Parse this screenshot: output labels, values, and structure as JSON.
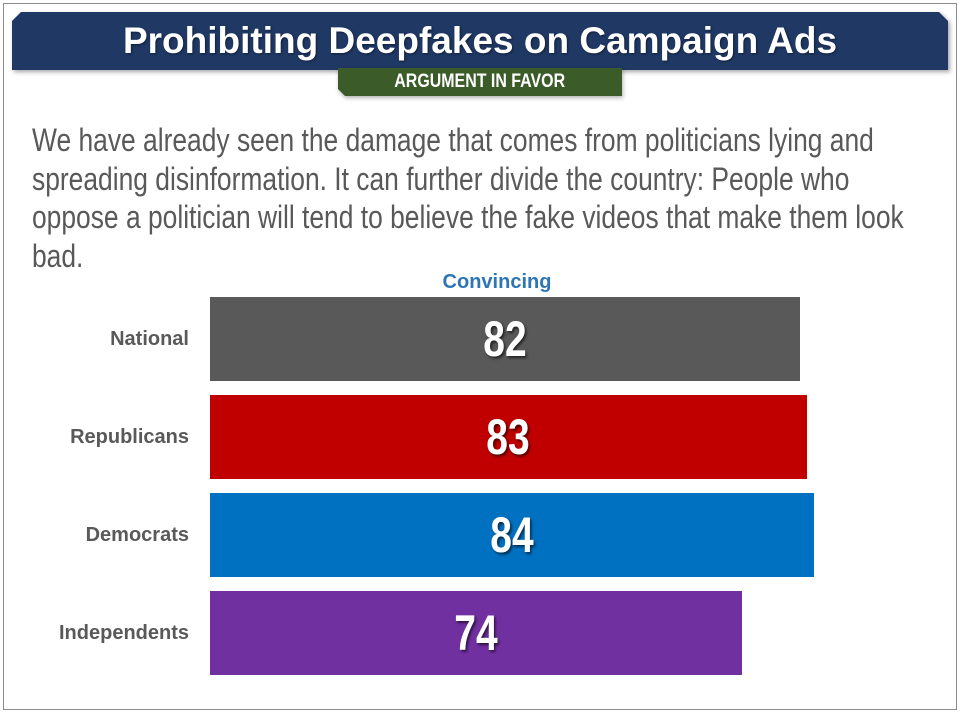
{
  "title": "Prohibiting Deepfakes on Campaign Ads",
  "tag": "ARGUMENT IN FAVOR",
  "argument": {
    "lines": [
      "We have already seen the damage that comes from politicians lying and",
      "spreading disinformation. It can further divide the country: People who",
      "oppose a politician will tend to believe the fake videos that make them look",
      "bad."
    ]
  },
  "colors": {
    "title_bg": "#1F3864",
    "tag_bg": "#3B5B29",
    "body_text": "#595959",
    "series_header": "#2E75B6",
    "category_label": "#595959",
    "data_label": "#FFFFFF"
  },
  "chart_data": {
    "type": "bar",
    "orientation": "horizontal",
    "categories": [
      "National",
      "Republicans",
      "Democrats",
      "Independents"
    ],
    "series": [
      {
        "name": "Convincing",
        "values": [
          82,
          83,
          84,
          74
        ]
      }
    ],
    "bar_colors": [
      "#595959",
      "#C00000",
      "#0070C0",
      "#7030A0"
    ],
    "xlim": [
      0,
      100
    ],
    "data_labels": true,
    "grid": false,
    "legend": "none"
  }
}
